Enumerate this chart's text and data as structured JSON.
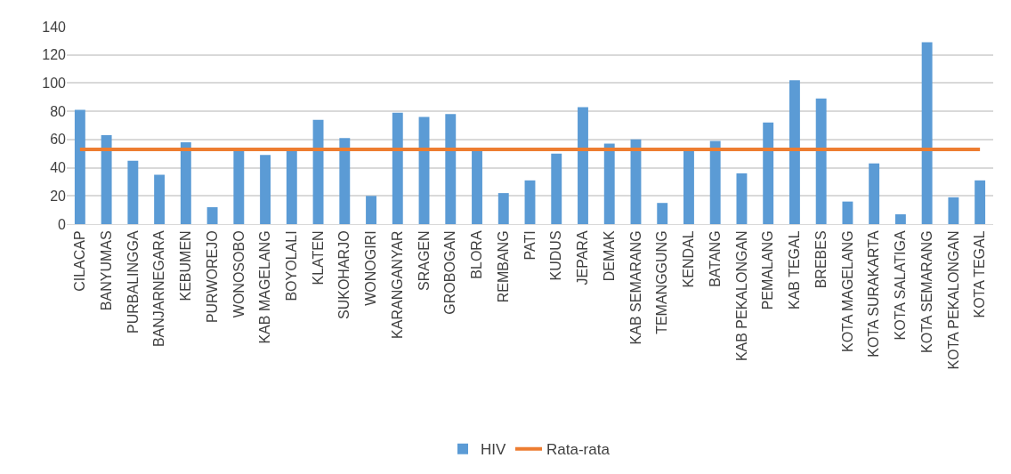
{
  "chart_data": {
    "type": "bar",
    "categories": [
      "CILACAP",
      "BANYUMAS",
      "PURBALINGGA",
      "BANJARNEGARA",
      "KEBUMEN",
      "PURWOREJO",
      "WONOSOBO",
      "KAB MAGELANG",
      "BOYOLALI",
      "KLATEN",
      "SUKOHARJO",
      "WONOGIRI",
      "KARANGANYAR",
      "SRAGEN",
      "GROBOGAN",
      "BLORA",
      "REMBANG",
      "PATI",
      "KUDUS",
      "JEPARA",
      "DEMAK",
      "KAB SEMARANG",
      "TEMANGGUNG",
      "KENDAL",
      "BATANG",
      "KAB PEKALONGAN",
      "PEMALANG",
      "KAB TEGAL",
      "BREBES",
      "KOTA MAGELANG",
      "KOTA SURAKARTA",
      "KOTA SALATIGA",
      "KOTA SEMARANG",
      "KOTA PEKALONGAN",
      "KOTA TEGAL"
    ],
    "series": [
      {
        "name": "HIV",
        "color": "#5b9bd5",
        "values": [
          81,
          63,
          45,
          35,
          58,
          12,
          53,
          49,
          53,
          74,
          61,
          20,
          79,
          76,
          78,
          53,
          22,
          31,
          50,
          83,
          57,
          60,
          15,
          53,
          59,
          36,
          72,
          102,
          89,
          16,
          43,
          7,
          129,
          19,
          31
        ]
      },
      {
        "name": "Rata-rata",
        "type": "line",
        "color": "#ed7d31",
        "values": [
          53,
          53,
          53,
          53,
          53,
          53,
          53,
          53,
          53,
          53,
          53,
          53,
          53,
          53,
          53,
          53,
          53,
          53,
          53,
          53,
          53,
          53,
          53,
          53,
          53,
          53,
          53,
          53,
          53,
          53,
          53,
          53,
          53,
          53,
          53
        ]
      }
    ],
    "ylim": [
      0,
      140
    ],
    "yticks": [
      0,
      20,
      40,
      60,
      80,
      100,
      120,
      140
    ],
    "grid": "y",
    "legend": "bottom",
    "marker": "none",
    "line_style": "solid"
  }
}
